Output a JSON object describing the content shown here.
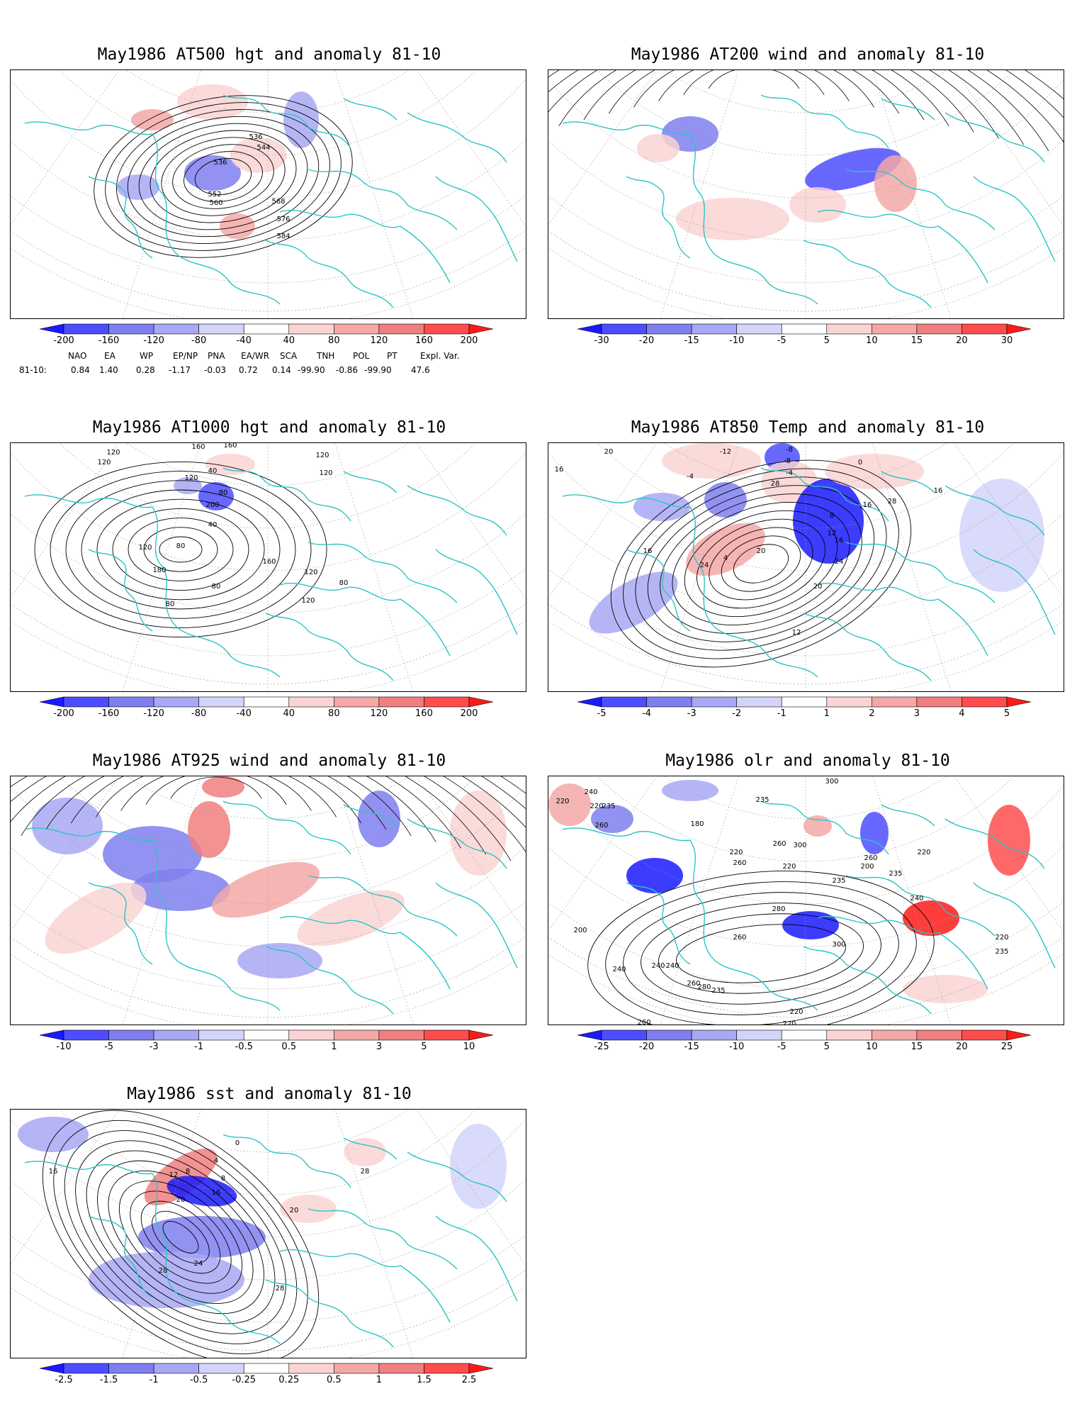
{
  "panels": [
    {
      "id": "p500",
      "title": "May1986 AT500 hgt and anomaly 81-10",
      "labels": [
        "536",
        "544",
        "536",
        "552",
        "560",
        "568",
        "576",
        "584"
      ],
      "colorbar": {
        "ticks": [
          "-200",
          "-160",
          "-120",
          "-80",
          "-40",
          "40",
          "80",
          "120",
          "160",
          "200"
        ]
      }
    },
    {
      "id": "p200",
      "title": "May1986 AT200 wind and anomaly 81-10",
      "labels": [],
      "colorbar": {
        "ticks": [
          "-30",
          "-20",
          "-15",
          "-10",
          "-5",
          "5",
          "10",
          "15",
          "20",
          "30"
        ]
      }
    },
    {
      "id": "p1000",
      "title": "May1986 AT1000 hgt and anomaly 81-10",
      "labels": [
        "120",
        "160",
        "160",
        "120",
        "40",
        "120",
        "80",
        "40",
        "120",
        "80",
        "180",
        "200",
        "160",
        "120",
        "80",
        "120",
        "80",
        "80",
        "120",
        "120"
      ],
      "colorbar": {
        "ticks": [
          "-200",
          "-160",
          "-120",
          "-80",
          "-40",
          "40",
          "80",
          "120",
          "160",
          "200"
        ]
      }
    },
    {
      "id": "p850",
      "title": "May1986 AT850 Temp and anomaly 81-10",
      "labels": [
        "20",
        "16",
        "-12",
        "-8",
        "-4",
        "-8",
        "-4",
        "0",
        "28",
        "8",
        "16",
        "28",
        "4",
        "12",
        "16",
        "20",
        "24",
        "12",
        "16",
        "24",
        "20",
        "16"
      ],
      "colorbar": {
        "ticks": [
          "-5",
          "-4",
          "-3",
          "-2",
          "-1",
          "1",
          "2",
          "3",
          "4",
          "5"
        ]
      }
    },
    {
      "id": "p925",
      "title": "May1986 AT925 wind and anomaly 81-10",
      "labels": [],
      "colorbar": {
        "ticks": [
          "-10",
          "-5",
          "-3",
          "-1",
          "-0.5",
          "0.5",
          "1",
          "3",
          "5",
          "10"
        ]
      }
    },
    {
      "id": "polr",
      "title": "May1986 olr and anomaly 81-10",
      "labels": [
        "220",
        "260",
        "235",
        "220",
        "240",
        "180",
        "220",
        "235",
        "260",
        "300",
        "235",
        "220",
        "240",
        "260",
        "200",
        "220",
        "235",
        "235",
        "220",
        "300",
        "280",
        "300",
        "260",
        "240",
        "260",
        "280",
        "235",
        "240",
        "220",
        "220",
        "235",
        "260",
        "240",
        "260",
        "200"
      ],
      "colorbar": {
        "ticks": [
          "-25",
          "-20",
          "-15",
          "-10",
          "-5",
          "5",
          "10",
          "15",
          "20",
          "25"
        ]
      }
    },
    {
      "id": "psst",
      "title": "May1986 sst and anomaly 81-10",
      "labels": [
        "0",
        "4",
        "8",
        "12",
        "8",
        "16",
        "20",
        "24",
        "28",
        "16",
        "20",
        "28",
        "28"
      ],
      "colorbar": {
        "ticks": [
          "-2.5",
          "-1.5",
          "-1",
          "-0.5",
          "-0.25",
          "0.25",
          "0.5",
          "1",
          "1.5",
          "2.5"
        ]
      }
    }
  ],
  "indices": {
    "header": [
      "NAO",
      "EA",
      "WP",
      "EP/NP",
      "PNA",
      "EA/WR",
      "SCA",
      "TNH",
      "POL",
      "PT",
      "Expl. Var."
    ],
    "row_label": "81-10:",
    "values": [
      "0.84",
      "1.40",
      "0.28",
      "-1.17",
      "-0.03",
      "0.72",
      "0.14",
      "-99.90",
      "-0.86",
      "-99.90",
      "47.6"
    ]
  },
  "colors": {
    "coast": "#2cc4c4",
    "blue": [
      "#1a1aff",
      "#4d4dff",
      "#7f7ff0",
      "#a8a8f5",
      "#d4d4fa"
    ],
    "red": [
      "#fad4d4",
      "#f5a8a8",
      "#f07f7f",
      "#ff4d4d",
      "#ff1a1a"
    ],
    "contour": "#000000"
  }
}
